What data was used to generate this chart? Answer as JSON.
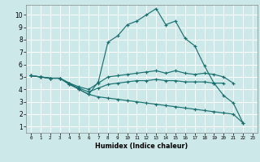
{
  "title": "",
  "xlabel": "Humidex (Indice chaleur)",
  "bg_color": "#cce8e8",
  "grid_color": "#ffffff",
  "line_color": "#1a7070",
  "xlim": [
    -0.5,
    23.5
  ],
  "ylim": [
    0.5,
    10.8
  ],
  "xticks": [
    0,
    1,
    2,
    3,
    4,
    5,
    6,
    7,
    8,
    9,
    10,
    11,
    12,
    13,
    14,
    15,
    16,
    17,
    18,
    19,
    20,
    21,
    22,
    23
  ],
  "yticks": [
    1,
    2,
    3,
    4,
    5,
    6,
    7,
    8,
    9,
    10
  ],
  "series": [
    [
      5.1,
      5.0,
      4.9,
      4.9,
      4.5,
      4.0,
      3.6,
      4.6,
      7.8,
      8.3,
      9.2,
      9.5,
      10.0,
      10.5,
      9.2,
      9.5,
      8.1,
      7.5,
      5.9,
      4.5,
      3.5,
      2.9,
      1.3
    ],
    [
      5.1,
      5.0,
      4.9,
      4.9,
      4.5,
      4.2,
      4.0,
      4.5,
      5.0,
      5.1,
      5.2,
      5.3,
      5.4,
      5.5,
      5.3,
      5.5,
      5.3,
      5.2,
      5.3,
      5.2,
      5.0,
      4.5,
      null
    ],
    [
      5.1,
      5.0,
      4.9,
      4.9,
      4.4,
      4.1,
      3.8,
      4.1,
      4.4,
      4.5,
      4.6,
      4.7,
      4.7,
      4.8,
      4.7,
      4.7,
      4.6,
      4.6,
      4.6,
      4.5,
      4.5,
      null,
      null
    ],
    [
      5.1,
      5.0,
      4.9,
      4.9,
      4.4,
      4.0,
      3.6,
      3.4,
      3.3,
      3.2,
      3.1,
      3.0,
      2.9,
      2.8,
      2.7,
      2.6,
      2.5,
      2.4,
      2.3,
      2.2,
      2.1,
      2.0,
      1.3
    ]
  ]
}
